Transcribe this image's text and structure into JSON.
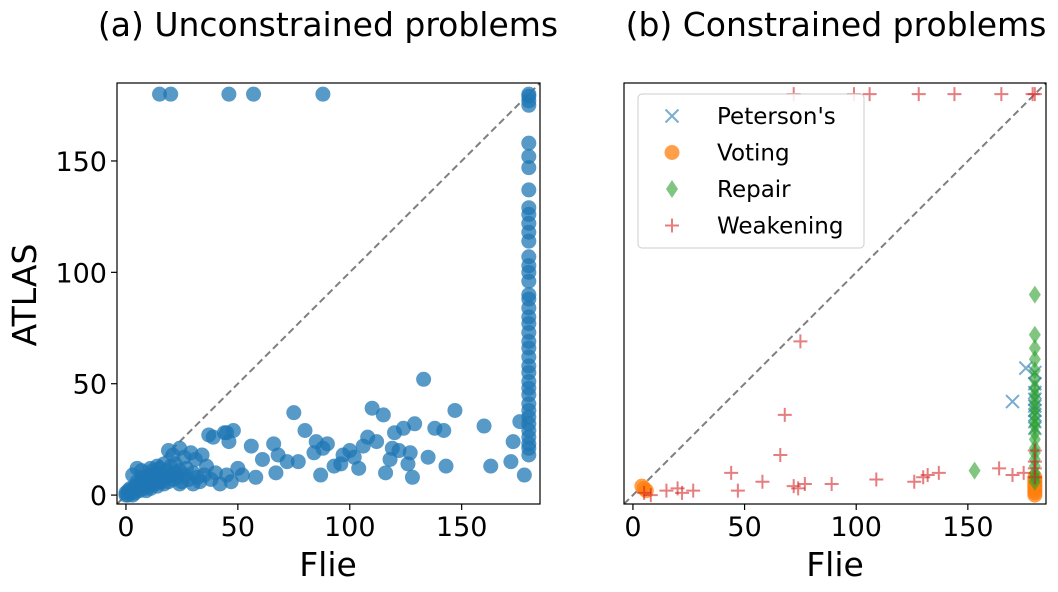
{
  "chart_data": [
    {
      "type": "scatter",
      "title": "(a) Unconstrained problems",
      "xlabel": "Flie",
      "ylabel": "ATLAS",
      "xlim": [
        -4,
        185
      ],
      "ylim": [
        -4,
        185
      ],
      "xticks": [
        0,
        50,
        100,
        150
      ],
      "yticks": [
        0,
        50,
        100,
        150
      ],
      "diagonal": true,
      "series": [
        {
          "marker": "circle",
          "color": "#1f77b4",
          "points": [
            [
              0,
              0
            ],
            [
              0,
              1
            ],
            [
              1,
              0
            ],
            [
              1,
              2
            ],
            [
              2,
              1
            ],
            [
              2,
              3
            ],
            [
              3,
              2
            ],
            [
              3,
              0
            ],
            [
              4,
              4
            ],
            [
              4,
              1
            ],
            [
              5,
              3
            ],
            [
              5,
              6
            ],
            [
              6,
              2
            ],
            [
              6,
              5
            ],
            [
              7,
              4
            ],
            [
              7,
              8
            ],
            [
              8,
              3
            ],
            [
              8,
              6
            ],
            [
              9,
              5
            ],
            [
              9,
              2
            ],
            [
              10,
              7
            ],
            [
              10,
              4
            ],
            [
              11,
              9
            ],
            [
              11,
              3
            ],
            [
              12,
              6
            ],
            [
              12,
              11
            ],
            [
              13,
              5
            ],
            [
              13,
              8
            ],
            [
              14,
              10
            ],
            [
              14,
              4
            ],
            [
              15,
              7
            ],
            [
              15,
              12
            ],
            [
              16,
              6
            ],
            [
              16,
              9
            ],
            [
              17,
              5
            ],
            [
              18,
              8
            ],
            [
              18,
              11
            ],
            [
              19,
              6
            ],
            [
              20,
              9
            ],
            [
              20,
              13
            ],
            [
              21,
              7
            ],
            [
              22,
              10
            ],
            [
              22,
              14
            ],
            [
              23,
              8
            ],
            [
              24,
              5
            ],
            [
              24,
              11
            ],
            [
              25,
              6
            ],
            [
              26,
              9
            ],
            [
              27,
              12
            ],
            [
              28,
              7
            ],
            [
              30,
              5
            ],
            [
              30,
              10
            ],
            [
              32,
              8
            ],
            [
              33,
              6
            ],
            [
              35,
              9
            ],
            [
              36,
              13
            ],
            [
              38,
              7
            ],
            [
              40,
              10
            ],
            [
              42,
              5
            ],
            [
              45,
              9
            ],
            [
              47,
              6
            ],
            [
              3,
              9
            ],
            [
              5,
              12
            ],
            [
              7,
              11
            ],
            [
              9,
              8
            ],
            [
              11,
              12
            ],
            [
              14,
              13
            ],
            [
              17,
              14
            ],
            [
              19,
              20
            ],
            [
              21,
              18
            ],
            [
              24,
              21
            ],
            [
              26,
              17
            ],
            [
              29,
              19
            ],
            [
              31,
              16
            ],
            [
              34,
              18
            ],
            [
              37,
              27
            ],
            [
              39,
              26
            ],
            [
              44,
              28
            ],
            [
              46,
              24
            ],
            [
              50,
              12
            ],
            [
              52,
              9
            ],
            [
              56,
              22
            ],
            [
              58,
              8
            ],
            [
              61,
              16
            ],
            [
              66,
              23
            ],
            [
              67,
              10
            ],
            [
              75,
              37
            ],
            [
              77,
              15
            ],
            [
              80,
              29
            ],
            [
              84,
              19
            ],
            [
              87,
              9
            ],
            [
              88,
              21
            ],
            [
              93,
              13
            ],
            [
              97,
              18
            ],
            [
              100,
              20
            ],
            [
              104,
              12
            ],
            [
              108,
              26
            ],
            [
              110,
              39
            ],
            [
              112,
              24
            ],
            [
              115,
              36
            ],
            [
              116,
              10
            ],
            [
              118,
              16
            ],
            [
              120,
              28
            ],
            [
              122,
              20
            ],
            [
              124,
              30
            ],
            [
              126,
              14
            ],
            [
              128,
              8
            ],
            [
              129,
              32
            ],
            [
              133,
              52
            ],
            [
              135,
              17
            ],
            [
              142,
              29
            ],
            [
              143,
              13
            ],
            [
              147,
              38
            ],
            [
              160,
              31
            ],
            [
              163,
              13
            ],
            [
              172,
              15
            ],
            [
              173,
              24
            ],
            [
              176,
              33
            ],
            [
              178,
              9
            ],
            [
              45,
              28
            ],
            [
              48,
              29
            ],
            [
              68,
              18
            ],
            [
              72,
              15
            ],
            [
              85,
              24
            ],
            [
              90,
              23
            ],
            [
              96,
              14
            ],
            [
              102,
              17
            ],
            [
              106,
              22
            ],
            [
              119,
              21
            ],
            [
              127,
              19
            ],
            [
              138,
              30
            ],
            [
              15,
              180
            ],
            [
              20,
              180
            ],
            [
              46,
              180
            ],
            [
              57,
              180
            ],
            [
              88,
              180
            ],
            [
              180,
              180
            ],
            [
              180,
              179
            ],
            [
              180,
              177
            ],
            [
              180,
              175
            ],
            [
              180,
              158
            ],
            [
              180,
              152
            ],
            [
              180,
              147
            ],
            [
              180,
              137
            ],
            [
              180,
              129
            ],
            [
              180,
              126
            ],
            [
              180,
              122
            ],
            [
              180,
              118
            ],
            [
              180,
              114
            ],
            [
              180,
              107
            ],
            [
              180,
              103
            ],
            [
              180,
              100
            ],
            [
              180,
              96
            ],
            [
              180,
              90
            ],
            [
              180,
              88
            ],
            [
              180,
              84
            ],
            [
              180,
              80
            ],
            [
              180,
              77
            ],
            [
              180,
              73
            ],
            [
              180,
              69
            ],
            [
              180,
              66
            ],
            [
              180,
              62
            ],
            [
              180,
              58
            ],
            [
              180,
              55
            ],
            [
              180,
              51
            ],
            [
              180,
              48
            ],
            [
              180,
              45
            ],
            [
              180,
              41
            ],
            [
              180,
              38
            ],
            [
              180,
              35
            ],
            [
              180,
              32
            ],
            [
              180,
              29
            ],
            [
              180,
              26
            ],
            [
              180,
              23
            ],
            [
              180,
              21
            ],
            [
              180,
              18
            ]
          ]
        }
      ]
    },
    {
      "type": "scatter",
      "title": "(b) Constrained problems",
      "xlabel": "Flie",
      "ylabel": "",
      "xlim": [
        -4,
        185
      ],
      "ylim": [
        -4,
        185
      ],
      "xticks": [
        0,
        50,
        100,
        150
      ],
      "yticks": [],
      "diagonal": true,
      "legend": "top-left",
      "series": [
        {
          "name": "Peterson's",
          "marker": "x",
          "color": "#1f77b4",
          "points": [
            [
              170,
              42
            ],
            [
              176,
              57
            ],
            [
              180,
              55
            ],
            [
              180,
              50
            ],
            [
              180,
              46
            ],
            [
              180,
              43
            ],
            [
              180,
              40
            ],
            [
              180,
              38
            ],
            [
              180,
              36
            ],
            [
              180,
              33
            ],
            [
              180,
              30
            ]
          ]
        },
        {
          "name": "Voting",
          "marker": "circle",
          "color": "#ff7f0e",
          "points": [
            [
              5,
              3
            ],
            [
              6,
              2
            ],
            [
              4,
              4
            ],
            [
              180,
              8
            ],
            [
              180,
              6
            ],
            [
              180,
              5
            ],
            [
              180,
              4
            ],
            [
              180,
              3
            ],
            [
              180,
              2
            ],
            [
              180,
              1
            ],
            [
              180,
              0
            ],
            [
              180,
              7
            ]
          ]
        },
        {
          "name": "Repair",
          "marker": "diamond",
          "color": "#2ca02c",
          "points": [
            [
              153,
              11
            ],
            [
              180,
              90
            ],
            [
              180,
              72
            ],
            [
              180,
              66
            ],
            [
              180,
              61
            ],
            [
              180,
              56
            ],
            [
              180,
              52
            ],
            [
              180,
              48
            ],
            [
              180,
              45
            ],
            [
              180,
              42
            ],
            [
              180,
              39
            ],
            [
              180,
              36
            ],
            [
              180,
              33
            ],
            [
              180,
              31
            ],
            [
              180,
              28
            ],
            [
              180,
              25
            ],
            [
              180,
              21
            ],
            [
              180,
              19
            ],
            [
              180,
              16
            ],
            [
              180,
              13
            ],
            [
              180,
              10
            ],
            [
              180,
              8
            ],
            [
              180,
              6
            ]
          ]
        },
        {
          "name": "Weakening",
          "marker": "plus",
          "color": "#d62728",
          "points": [
            [
              5,
              1
            ],
            [
              8,
              0
            ],
            [
              15,
              2
            ],
            [
              20,
              3
            ],
            [
              22,
              1
            ],
            [
              27,
              2
            ],
            [
              44,
              10
            ],
            [
              47,
              2
            ],
            [
              58,
              6
            ],
            [
              66,
              18
            ],
            [
              68,
              36
            ],
            [
              72,
              4
            ],
            [
              74,
              3
            ],
            [
              75,
              69
            ],
            [
              77,
              5
            ],
            [
              89,
              5
            ],
            [
              109,
              7
            ],
            [
              126,
              6
            ],
            [
              130,
              8
            ],
            [
              132,
              9
            ],
            [
              137,
              10
            ],
            [
              164,
              12
            ],
            [
              170,
              9
            ],
            [
              175,
              10
            ],
            [
              180,
              12
            ],
            [
              180,
              8
            ],
            [
              180,
              15
            ],
            [
              180,
              20
            ],
            [
              72,
              180
            ],
            [
              99,
              180
            ],
            [
              106,
              180
            ],
            [
              128,
              180
            ],
            [
              144,
              180
            ],
            [
              165,
              180
            ],
            [
              179,
              180
            ],
            [
              180,
              180
            ]
          ]
        }
      ]
    }
  ]
}
